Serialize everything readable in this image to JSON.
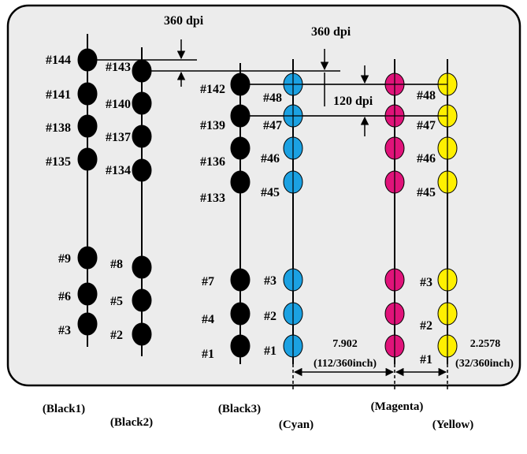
{
  "colors": {
    "panel": "#ececec",
    "black": "#000000",
    "cyan": "#1ba1e2",
    "magenta": "#e0137a",
    "yellow": "#fff000"
  },
  "dpi_labels": {
    "black_pitch": "360 dpi",
    "color_offset": "360 dpi",
    "color_pitch": "120 dpi"
  },
  "distances": {
    "cyan_magenta_value": "7.902",
    "cyan_magenta_fraction": "(112/360inch)",
    "magenta_yellow_value": "2.2578",
    "magenta_yellow_fraction": "(32/360inch)"
  },
  "bottom_labels": {
    "black1": "(Black1)",
    "black2": "(Black2)",
    "black3": "(Black3)",
    "cyan": "(Cyan)",
    "magenta": "(Magenta)",
    "yellow": "(Yellow)"
  },
  "nozzles": {
    "black1": [
      "#144",
      "#141",
      "#138",
      "#135",
      "#9",
      "#6",
      "#3"
    ],
    "black2": [
      "#143",
      "#140",
      "#137",
      "#134",
      "#8",
      "#5",
      "#2"
    ],
    "black3": [
      "#142",
      "#139",
      "#136",
      "#133",
      "#7",
      "#4",
      "#1"
    ],
    "cyan": [
      "#48",
      "#47",
      "#46",
      "#45",
      "#3",
      "#2",
      "#1"
    ],
    "yellow": [
      "#48",
      "#47",
      "#46",
      "#45",
      "#3",
      "#2",
      "#1"
    ]
  }
}
